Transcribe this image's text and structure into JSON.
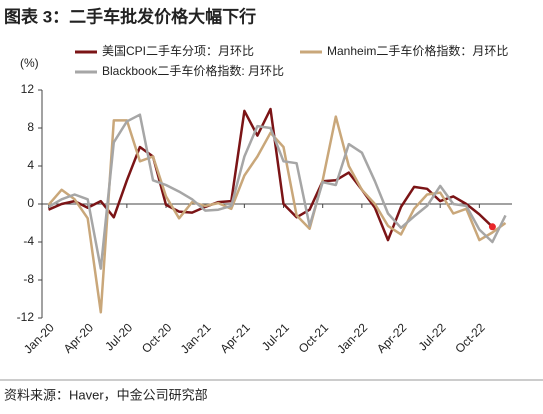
{
  "chart_data": {
    "type": "line",
    "title": "图表 3：二手车批发价格大幅下行",
    "y_label": "(%)",
    "source": "资料来源：Haver，中金公司研究部",
    "categories": [
      "Jan-20",
      null,
      null,
      "Apr-20",
      null,
      null,
      "Jul-20",
      null,
      null,
      "Oct-20",
      null,
      null,
      "Jan-21",
      null,
      null,
      "Apr-21",
      null,
      null,
      "Jul-21",
      null,
      null,
      "Oct-21",
      null,
      null,
      "Jan-22",
      null,
      null,
      "Apr-22",
      null,
      null,
      "Jul-22",
      null,
      null,
      "Oct-22",
      null,
      null
    ],
    "series": [
      {
        "name": "美国CPI二手车分项：月环比",
        "color": "#7b1416",
        "values": [
          -0.6,
          0,
          0.3,
          -0.4,
          0.3,
          -1.4,
          2.5,
          6.0,
          5.0,
          -0.1,
          -0.8,
          -0.9,
          -0.3,
          0.2,
          0.3,
          9.8,
          7.2,
          10.0,
          0.0,
          -1.4,
          -0.6,
          2.4,
          2.5,
          3.3,
          1.5,
          -0.4,
          -3.8,
          -0.3,
          1.8,
          1.6,
          0.3,
          0.8,
          0,
          -1.1,
          -2.4,
          null
        ]
      },
      {
        "name": "Manheim二手车价格指数：月环比",
        "color": "#c9a77a",
        "values": [
          -0.1,
          1.5,
          0.5,
          -1.5,
          -11.4,
          8.8,
          8.8,
          4.5,
          5.0,
          0.8,
          -1.5,
          0.2,
          -0.2,
          0.1,
          -0.5,
          3.0,
          5.0,
          7.5,
          6.0,
          -1.2,
          -2.6,
          2.5,
          9.2,
          4.0,
          1.5,
          0.0,
          -2.3,
          -3.2,
          -0.5,
          1.0,
          1.2,
          -1.0,
          -0.5,
          -3.8,
          -3.0,
          -2.0
        ]
      },
      {
        "name": "Blackbook二手车价格指数: 月环比",
        "color": "#a6a6a6",
        "values": [
          -0.3,
          0.5,
          1.0,
          0.5,
          -6.8,
          6.5,
          8.7,
          9.4,
          2.5,
          2.0,
          1.3,
          0.5,
          -0.7,
          -0.6,
          -0.2,
          5.0,
          8.2,
          8.0,
          4.5,
          4.3,
          -2.3,
          2.3,
          2.0,
          6.3,
          5.4,
          2.4,
          -1.0,
          -2.5,
          -1.3,
          -0.2,
          1.9,
          0.0,
          -0.2,
          -2.7,
          -4.0,
          -1.2
        ]
      }
    ],
    "highlight_last": {
      "series": 0,
      "color": "#e8262a"
    },
    "ylim": [
      -12,
      12
    ],
    "yticks": [
      -12,
      -8,
      -4,
      0,
      4,
      8,
      12
    ]
  }
}
